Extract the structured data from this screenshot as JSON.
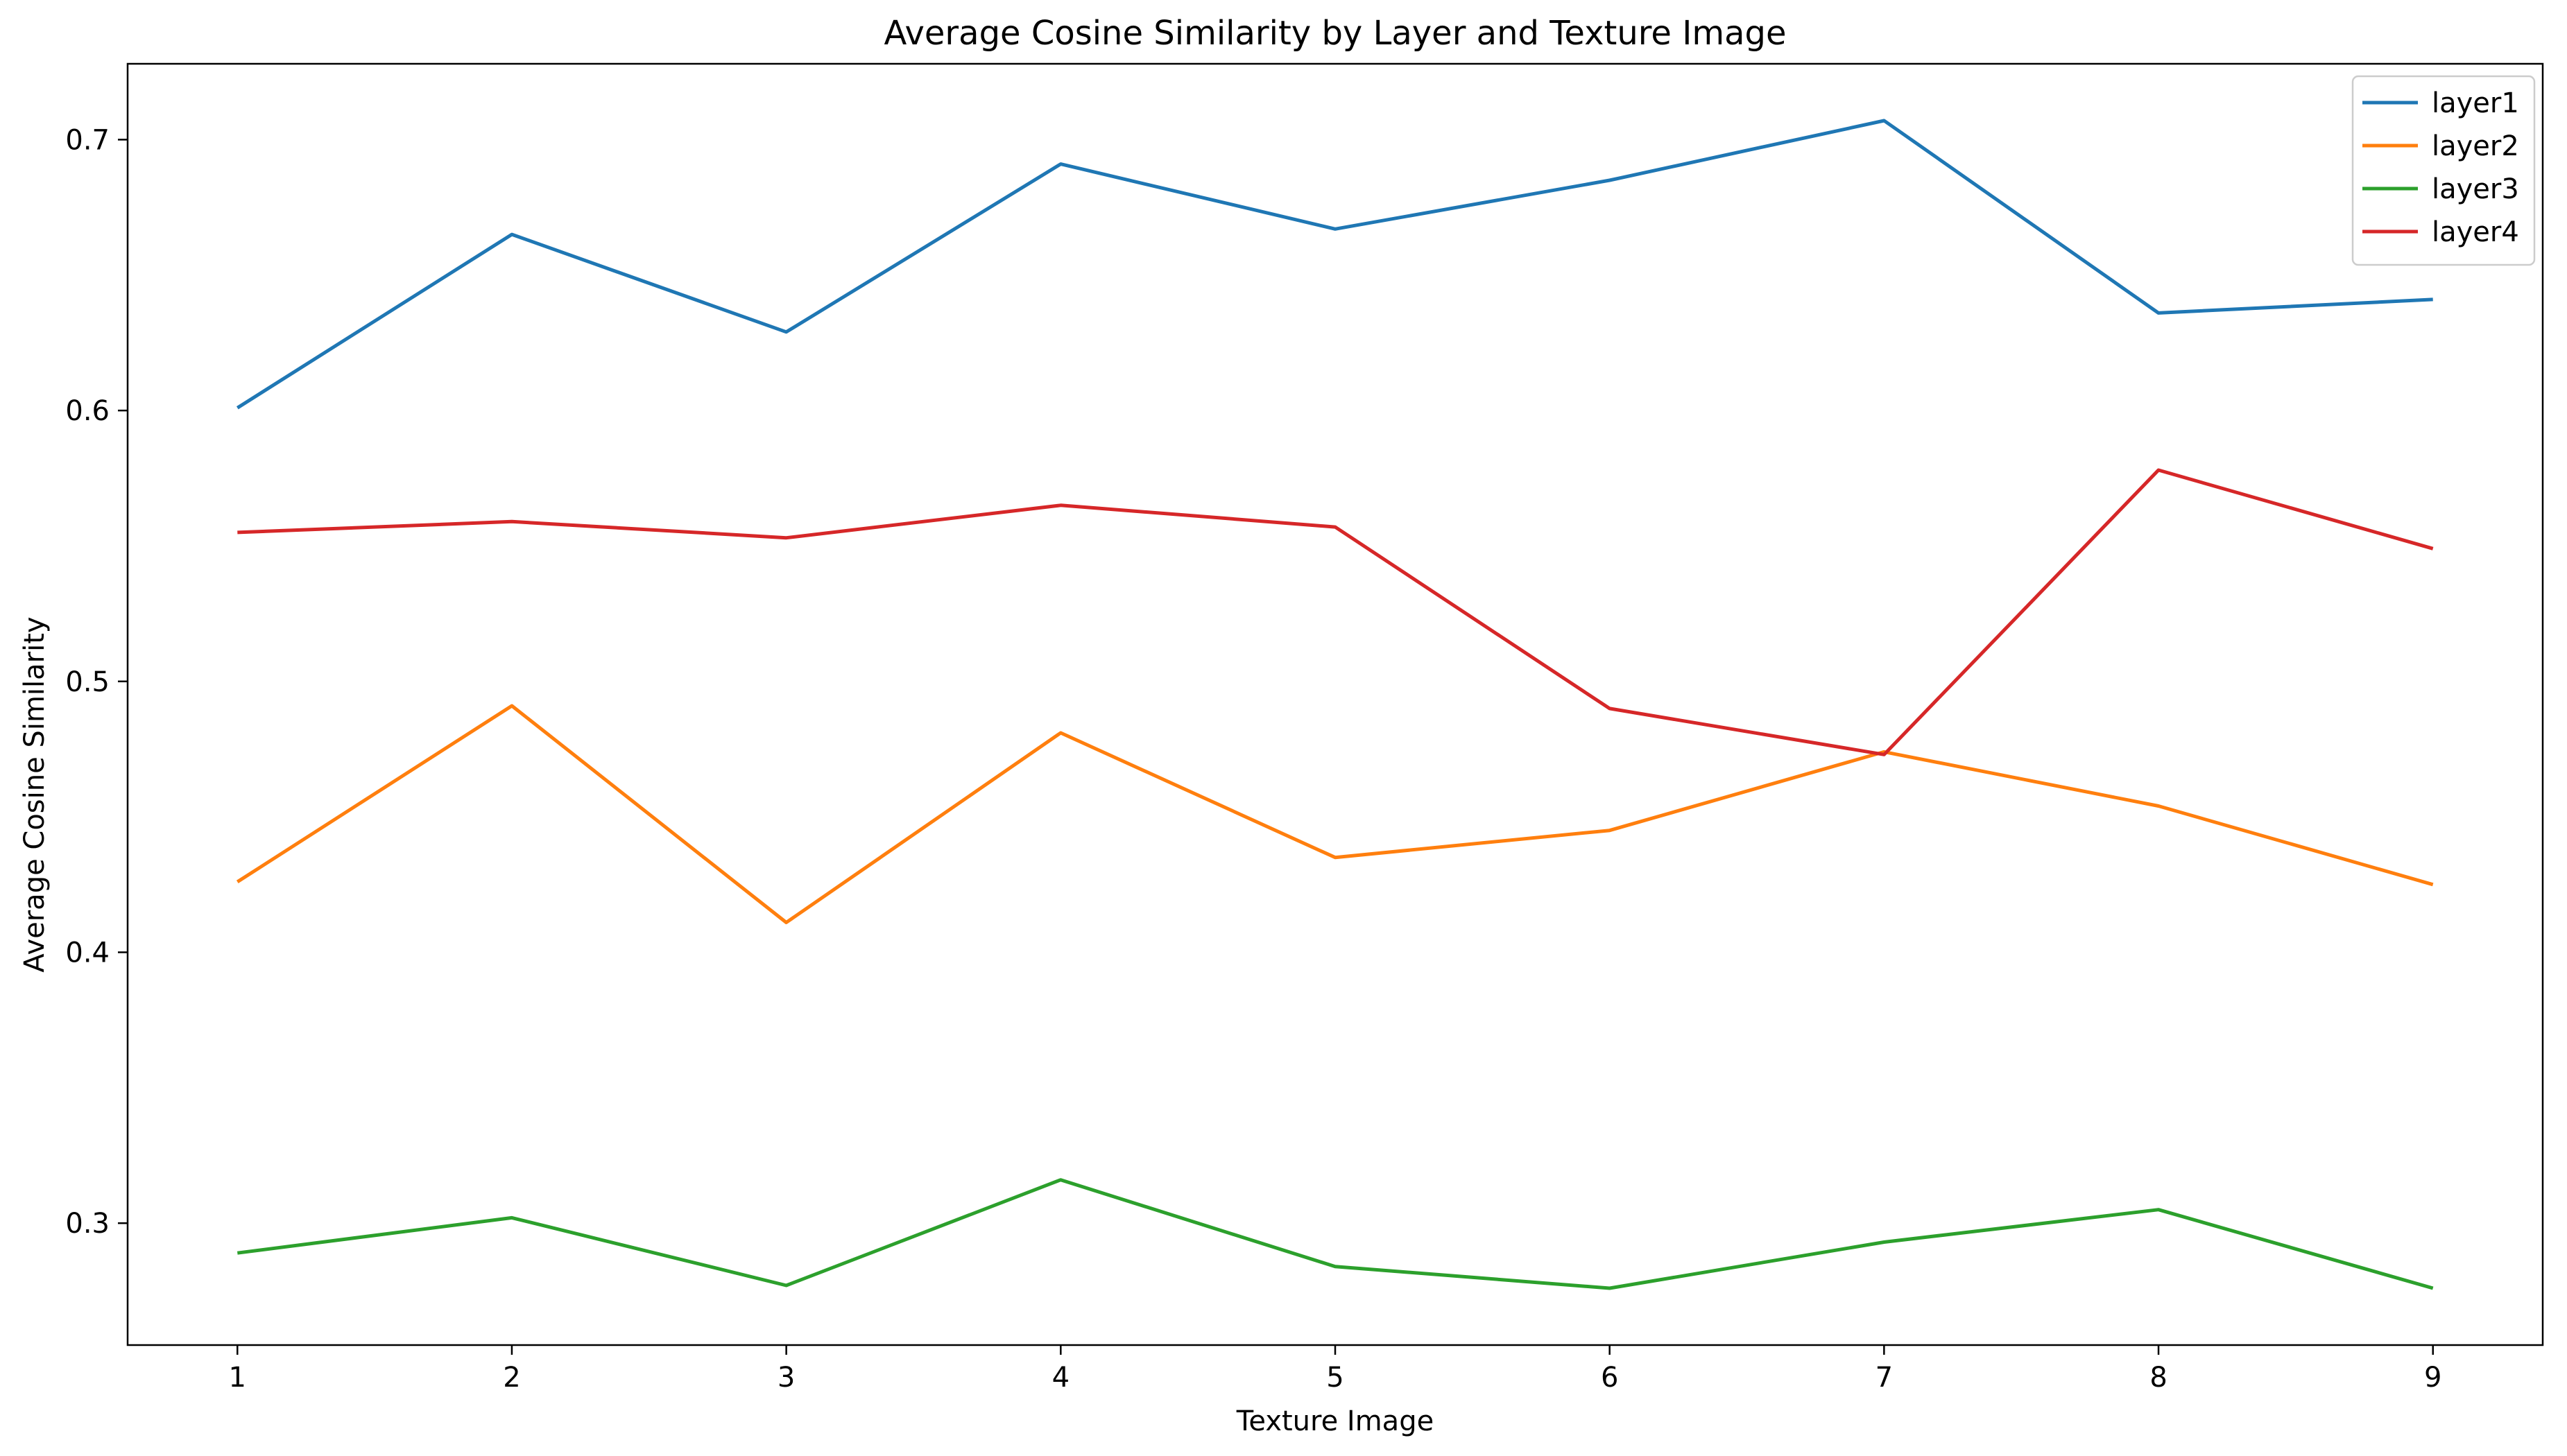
{
  "chart_data": {
    "type": "line",
    "title": "Average Cosine Similarity by Layer and Texture Image",
    "xlabel": "Texture Image",
    "ylabel": "Average Cosine Similarity",
    "x": [
      1,
      2,
      3,
      4,
      5,
      6,
      7,
      8,
      9
    ],
    "x_ticks": [
      "1",
      "2",
      "3",
      "4",
      "5",
      "6",
      "7",
      "8",
      "9"
    ],
    "y_ticks": [
      "0.3",
      "0.4",
      "0.5",
      "0.6",
      "0.7"
    ],
    "xlim": [
      0.6,
      9.4
    ],
    "ylim": [
      0.255,
      0.728
    ],
    "grid": false,
    "legend_position": "top-right",
    "series": [
      {
        "name": "layer1",
        "color": "#1f77b4",
        "values": [
          0.601,
          0.665,
          0.629,
          0.691,
          0.667,
          0.685,
          0.707,
          0.636,
          0.641
        ]
      },
      {
        "name": "layer2",
        "color": "#ff7f0e",
        "values": [
          0.426,
          0.491,
          0.411,
          0.481,
          0.435,
          0.445,
          0.474,
          0.454,
          0.425
        ]
      },
      {
        "name": "layer3",
        "color": "#2ca02c",
        "values": [
          0.289,
          0.302,
          0.277,
          0.316,
          0.284,
          0.276,
          0.293,
          0.305,
          0.276
        ]
      },
      {
        "name": "layer4",
        "color": "#d62728",
        "values": [
          0.555,
          0.559,
          0.553,
          0.565,
          0.557,
          0.49,
          0.473,
          0.578,
          0.549
        ]
      }
    ]
  }
}
